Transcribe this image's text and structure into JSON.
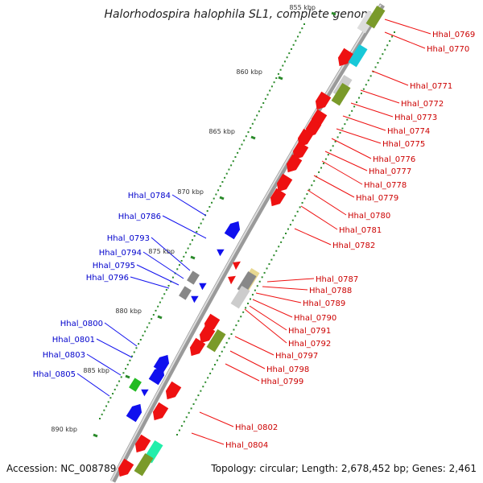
{
  "title": "Halorhodospira halophila SL1, complete genome",
  "footer": {
    "accession": "Accession: NC_008789",
    "topology": "Topology: circular; Length: 2,678,452 bp; Genes: 2,461"
  },
  "scale": {
    "ticks": [
      "855 kbp",
      "860 kbp",
      "865 kbp",
      "870 kbp",
      "875 kbp",
      "880 kbp",
      "885 kbp",
      "890 kbp"
    ]
  },
  "colors": {
    "forward_cds": "#ee1111",
    "reverse_cds": "#1010ee",
    "label_forward": "#cc0000",
    "label_reverse": "#0000cc",
    "olive": "#7a9a2a",
    "cyan": "#18c8d8",
    "green": "#22bb22",
    "teal": "#22eeaa",
    "gray": "#888888",
    "tick": "#2a8a2a"
  },
  "genes_forward": [
    "Hhal_0769",
    "Hhal_0770",
    "Hhal_0771",
    "Hhal_0772",
    "Hhal_0773",
    "Hhal_0774",
    "Hhal_0775",
    "Hhal_0776",
    "Hhal_0777",
    "Hhal_0778",
    "Hhal_0779",
    "Hhal_0780",
    "Hhal_0781",
    "Hhal_0782",
    "Hhal_0787",
    "Hhal_0788",
    "Hhal_0789",
    "Hhal_0790",
    "Hhal_0791",
    "Hhal_0792",
    "Hhal_0797",
    "Hhal_0798",
    "Hhal_0799",
    "Hhal_0802",
    "Hhal_0804"
  ],
  "genes_reverse": [
    "Hhal_0784",
    "Hhal_0786",
    "Hhal_0793",
    "Hhal_0794",
    "Hhal_0795",
    "Hhal_0796",
    "Hhal_0800",
    "Hhal_0801",
    "Hhal_0803",
    "Hhal_0805"
  ]
}
